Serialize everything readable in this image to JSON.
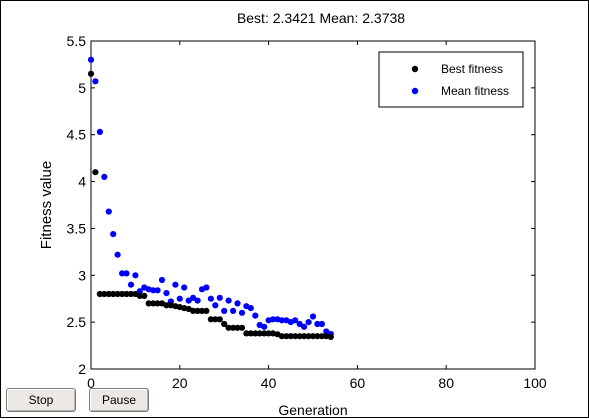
{
  "window": {
    "buttons": {
      "stop_label": "Stop",
      "pause_label": "Pause"
    }
  },
  "chart_data": {
    "type": "scatter",
    "title": "Best: 2.3421 Mean: 2.3738",
    "xlabel": "Generation",
    "ylabel": "Fitness value",
    "xlim": [
      0,
      100
    ],
    "ylim": [
      2,
      5.5
    ],
    "xticks": [
      "0",
      "20",
      "40",
      "60",
      "80",
      "100"
    ],
    "yticks": [
      "2",
      "2.5",
      "3",
      "3.5",
      "4",
      "4.5",
      "5",
      "5.5"
    ],
    "grid": false,
    "legend_position": "top-right",
    "series": [
      {
        "name": "Best fitness",
        "color": "#000000",
        "x": [
          0,
          1,
          2,
          3,
          4,
          5,
          6,
          7,
          8,
          9,
          10,
          11,
          12,
          13,
          14,
          15,
          16,
          17,
          18,
          19,
          20,
          21,
          22,
          23,
          24,
          25,
          26,
          27,
          28,
          29,
          30,
          31,
          32,
          33,
          34,
          35,
          36,
          37,
          38,
          39,
          40,
          41,
          42,
          43,
          44,
          45,
          46,
          47,
          48,
          49,
          50,
          51,
          52,
          53,
          54
        ],
        "y": [
          5.15,
          4.1,
          2.8,
          2.8,
          2.8,
          2.8,
          2.8,
          2.8,
          2.8,
          2.8,
          2.8,
          2.78,
          2.78,
          2.7,
          2.7,
          2.7,
          2.7,
          2.68,
          2.68,
          2.67,
          2.66,
          2.65,
          2.64,
          2.62,
          2.62,
          2.62,
          2.62,
          2.53,
          2.53,
          2.53,
          2.48,
          2.44,
          2.44,
          2.44,
          2.44,
          2.38,
          2.38,
          2.38,
          2.38,
          2.38,
          2.38,
          2.38,
          2.37,
          2.35,
          2.35,
          2.35,
          2.35,
          2.35,
          2.35,
          2.35,
          2.35,
          2.35,
          2.35,
          2.35,
          2.342
        ]
      },
      {
        "name": "Mean fitness",
        "color": "#0000ff",
        "x": [
          0,
          1,
          2,
          3,
          4,
          5,
          6,
          7,
          8,
          9,
          10,
          11,
          12,
          13,
          14,
          15,
          16,
          17,
          18,
          19,
          20,
          21,
          22,
          23,
          24,
          25,
          26,
          27,
          28,
          29,
          30,
          31,
          32,
          33,
          34,
          35,
          36,
          37,
          38,
          39,
          40,
          41,
          42,
          43,
          44,
          45,
          46,
          47,
          48,
          49,
          50,
          51,
          52,
          53,
          54
        ],
        "y": [
          5.3,
          5.07,
          4.53,
          4.05,
          3.68,
          3.44,
          3.22,
          3.02,
          3.02,
          2.9,
          3.0,
          2.83,
          2.87,
          2.85,
          2.84,
          2.84,
          2.95,
          2.81,
          2.72,
          2.9,
          2.75,
          2.87,
          2.73,
          2.76,
          2.73,
          2.85,
          2.87,
          2.75,
          2.68,
          2.76,
          2.62,
          2.73,
          2.62,
          2.7,
          2.6,
          2.67,
          2.65,
          2.57,
          2.47,
          2.45,
          2.52,
          2.53,
          2.53,
          2.52,
          2.52,
          2.5,
          2.52,
          2.48,
          2.45,
          2.5,
          2.56,
          2.48,
          2.48,
          2.4,
          2.3738
        ]
      }
    ]
  }
}
